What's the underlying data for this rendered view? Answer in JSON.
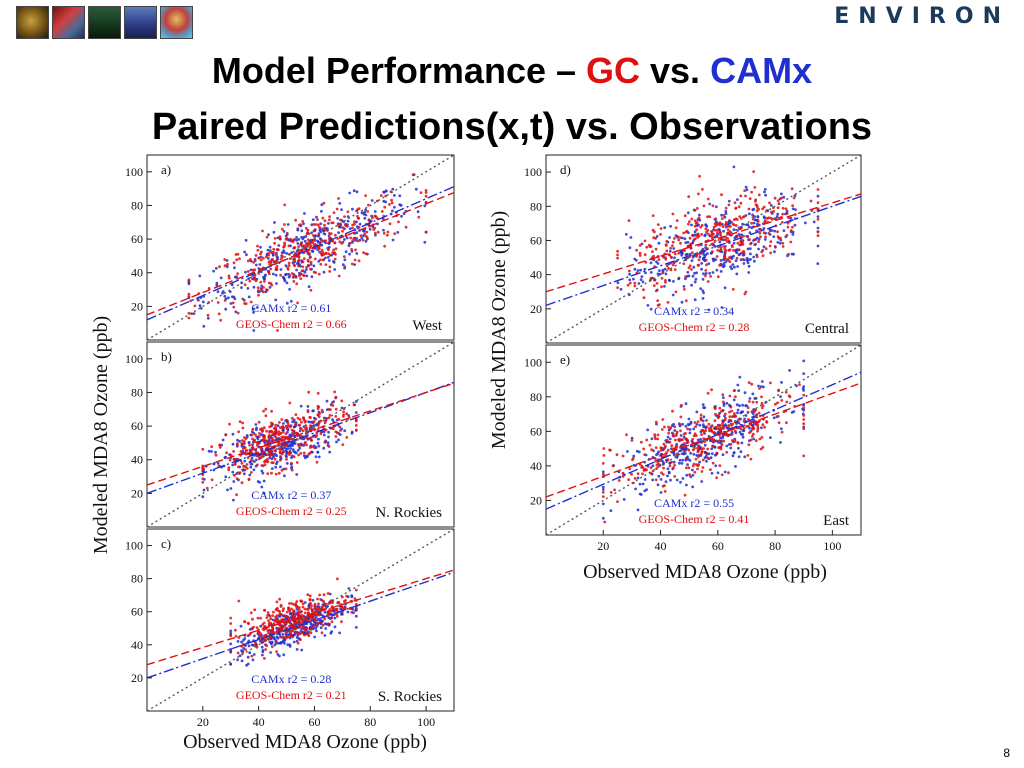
{
  "header": {
    "brand": "ENVIRON",
    "logo_icons": [
      "globe-icon",
      "dna-icon",
      "industry-icon",
      "ship-icon",
      "balloon-icon"
    ]
  },
  "title": {
    "line1_prefix": "Model Performance – ",
    "line1_gc": "GC",
    "line1_mid": " vs. ",
    "line1_camx": "CAMx",
    "line2": "Paired Predictions(x,t) vs. Observations"
  },
  "colors": {
    "gc": "#e01010",
    "camx": "#1f2fd0",
    "one_to_one": "#555555"
  },
  "axes": {
    "left_ylabel": "Modeled MDA8 Ozone (ppb)",
    "left_xlabel": "Observed MDA8 Ozone (ppb)",
    "right_ylabel": "Modeled MDA8 Ozone (ppb)",
    "right_xlabel": "Observed MDA8 Ozone (ppb)"
  },
  "page_number": "8",
  "chart_data": [
    {
      "type": "scatter",
      "panel": "a)",
      "region": "West",
      "xlim": [
        0,
        110
      ],
      "ylim": [
        0,
        110
      ],
      "yticks": [
        20,
        40,
        60,
        80,
        100
      ],
      "xticks": [],
      "camx_label": "CAMx r2 = 0.61",
      "gc_label": "GEOS-Chem r2 = 0.66",
      "series": [
        {
          "name": "CAMx",
          "fit": [
            12,
            0.72
          ],
          "cluster": {
            "x": [
              15,
              100
            ],
            "mean": 55,
            "spread": 10
          }
        },
        {
          "name": "GEOS-Chem",
          "fit": [
            15,
            0.66
          ],
          "cluster": {
            "x": [
              15,
              100
            ],
            "mean": 55,
            "spread": 10
          }
        }
      ]
    },
    {
      "type": "scatter",
      "panel": "b)",
      "region": "N. Rockies",
      "xlim": [
        0,
        110
      ],
      "ylim": [
        0,
        110
      ],
      "yticks": [
        20,
        40,
        60,
        80,
        100
      ],
      "xticks": [],
      "camx_label": "CAMx r2 = 0.37",
      "gc_label": "GEOS-Chem r2 = 0.25",
      "series": [
        {
          "name": "CAMx",
          "fit": [
            20,
            0.6
          ],
          "cluster": {
            "x": [
              20,
              75
            ],
            "mean": 52,
            "spread": 8
          }
        },
        {
          "name": "GEOS-Chem",
          "fit": [
            25,
            0.55
          ],
          "cluster": {
            "x": [
              20,
              75
            ],
            "mean": 55,
            "spread": 8
          }
        }
      ]
    },
    {
      "type": "scatter",
      "panel": "c)",
      "region": "S. Rockies",
      "xlim": [
        0,
        110
      ],
      "ylim": [
        0,
        110
      ],
      "yticks": [
        20,
        40,
        60,
        80,
        100
      ],
      "xticks": [
        20,
        40,
        60,
        80,
        100
      ],
      "camx_label": "CAMx r2 = 0.28",
      "gc_label": "GEOS-Chem r2 = 0.21",
      "series": [
        {
          "name": "CAMx",
          "fit": [
            20,
            0.58
          ],
          "cluster": {
            "x": [
              30,
              75
            ],
            "mean": 53,
            "spread": 6
          }
        },
        {
          "name": "GEOS-Chem",
          "fit": [
            28,
            0.52
          ],
          "cluster": {
            "x": [
              30,
              75
            ],
            "mean": 57,
            "spread": 6
          }
        }
      ]
    },
    {
      "type": "scatter",
      "panel": "d)",
      "region": "Central",
      "xlim": [
        0,
        110
      ],
      "ylim": [
        0,
        110
      ],
      "yticks": [
        20,
        40,
        60,
        80,
        100
      ],
      "xticks": [],
      "camx_label": "CAMx r2 = 0.34",
      "gc_label": "GEOS-Chem r2 = 0.28",
      "series": [
        {
          "name": "CAMx",
          "fit": [
            22,
            0.58
          ],
          "cluster": {
            "x": [
              25,
              95
            ],
            "mean": 55,
            "spread": 12
          }
        },
        {
          "name": "GEOS-Chem",
          "fit": [
            30,
            0.52
          ],
          "cluster": {
            "x": [
              25,
              95
            ],
            "mean": 58,
            "spread": 12
          }
        }
      ]
    },
    {
      "type": "scatter",
      "panel": "e)",
      "region": "East",
      "xlim": [
        0,
        110
      ],
      "ylim": [
        0,
        110
      ],
      "yticks": [
        20,
        40,
        60,
        80,
        100
      ],
      "xticks": [
        20,
        40,
        60,
        80,
        100
      ],
      "camx_label": "CAMx r2 = 0.55",
      "gc_label": "GEOS-Chem r2 = 0.41",
      "series": [
        {
          "name": "CAMx",
          "fit": [
            15,
            0.72
          ],
          "cluster": {
            "x": [
              20,
              90
            ],
            "mean": 55,
            "spread": 10
          }
        },
        {
          "name": "GEOS-Chem",
          "fit": [
            22,
            0.6
          ],
          "cluster": {
            "x": [
              20,
              90
            ],
            "mean": 55,
            "spread": 10
          }
        }
      ]
    }
  ]
}
